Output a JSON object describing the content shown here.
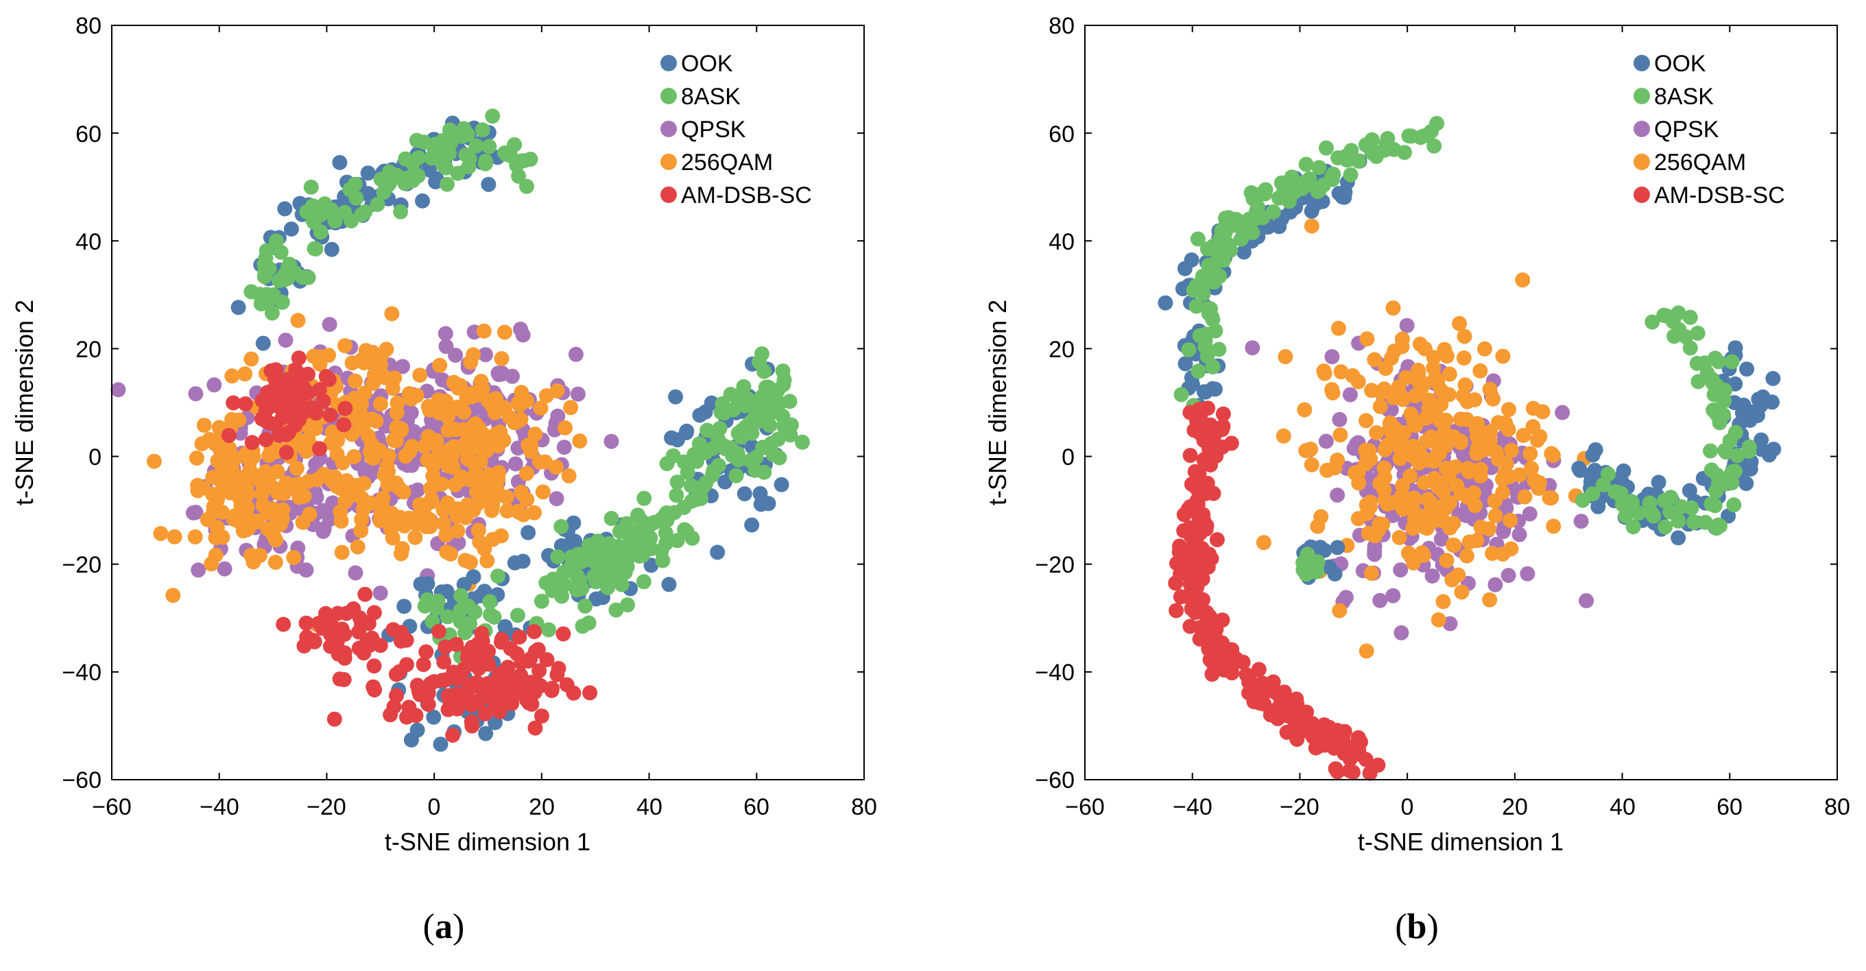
{
  "colors": {
    "OOK": "#4e7bab",
    "8ASK": "#6cbf66",
    "QPSK": "#a874b8",
    "256QAM": "#f79a32",
    "AM-DSB-SC": "#e34244"
  },
  "chart_data": [
    {
      "type": "scatter",
      "panel_label": "(a)",
      "panel_label_open": "(",
      "panel_label_letter": "a",
      "panel_label_close": ")",
      "xlabel": "t-SNE dimension 1",
      "ylabel": "t-SNE dimension 2",
      "xlim": [
        -60,
        80
      ],
      "ylim": [
        -60,
        80
      ],
      "xticks": [
        -60,
        -40,
        -20,
        0,
        20,
        40,
        60,
        80
      ],
      "yticks": [
        -60,
        -40,
        -20,
        0,
        20,
        40,
        60,
        80
      ],
      "xtick_labels": [
        "−60",
        "−40",
        "−20",
        "0",
        "20",
        "40",
        "60",
        "80"
      ],
      "ytick_labels": [
        "−60",
        "−40",
        "−20",
        "0",
        "20",
        "40",
        "60",
        "80"
      ],
      "legend": [
        "OOK",
        "8ASK",
        "QPSK",
        "256QAM",
        "AM-DSB-SC"
      ],
      "legend_position": "top-right",
      "series": [
        {
          "name": "QPSK",
          "clusters": [
            {
              "cx": -10,
              "cy": 2,
              "sx": 15,
              "sy": 9,
              "n": 200
            },
            {
              "cx": 8,
              "cy": 5,
              "sx": 9,
              "sy": 8,
              "n": 100
            },
            {
              "cx": -28,
              "cy": -10,
              "sx": 8,
              "sy": 6,
              "n": 60
            }
          ]
        },
        {
          "name": "256QAM",
          "clusters": [
            {
              "cx": -35,
              "cy": -8,
              "sx": 6,
              "sy": 7,
              "n": 110
            },
            {
              "cx": -15,
              "cy": 5,
              "sx": 12,
              "sy": 9,
              "n": 160
            },
            {
              "cx": 8,
              "cy": 2,
              "sx": 8,
              "sy": 9,
              "n": 130
            },
            {
              "cx": -5,
              "cy": -12,
              "sx": 10,
              "sy": 4,
              "n": 50
            }
          ]
        },
        {
          "name": "OOK",
          "clusters": [
            {
              "cx": 55,
              "cy": 0,
              "sx": 5,
              "sy": 8,
              "n": 50
            },
            {
              "cx": 30,
              "cy": -20,
              "sx": 6,
              "sy": 4,
              "n": 40
            },
            {
              "cx": 5,
              "cy": -28,
              "sx": 6,
              "sy": 4,
              "n": 35
            },
            {
              "cx": 5,
              "cy": -45,
              "sx": 6,
              "sy": 4,
              "n": 25
            }
          ],
          "curves": [
            {
              "points": [
                [
                  -30,
                  30
                ],
                [
                  -25,
                  42
                ],
                [
                  -15,
                  48
                ],
                [
                  -5,
                  52
                ],
                [
                  2,
                  58
                ],
                [
                  8,
                  58
                ],
                [
                  12,
                  55
                ]
              ],
              "n": 100,
              "spread": 2.6
            }
          ]
        },
        {
          "name": "8ASK",
          "clusters": [
            {
              "cx": 62,
              "cy": 8,
              "sx": 2.5,
              "sy": 5,
              "n": 40
            },
            {
              "cx": 40,
              "cy": -15,
              "sx": 4,
              "sy": 3,
              "n": 30
            },
            {
              "cx": 28,
              "cy": -22,
              "sx": 4,
              "sy": 4,
              "n": 50
            },
            {
              "cx": 5,
              "cy": -30,
              "sx": 6,
              "sy": 3,
              "n": 25
            }
          ],
          "curves": [
            {
              "points": [
                [
                  -32,
                  28
                ],
                [
                  -24,
                  42
                ],
                [
                  -14,
                  49
                ],
                [
                  -4,
                  53
                ],
                [
                  4,
                  58
                ],
                [
                  12,
                  56
                ],
                [
                  16,
                  53
                ]
              ],
              "n": 110,
              "spread": 2.4
            },
            {
              "points": [
                [
                  58,
                  12
                ],
                [
                  53,
                  0
                ],
                [
                  46,
                  -10
                ],
                [
                  38,
                  -16
                ],
                [
                  30,
                  -22
                ]
              ],
              "n": 70,
              "spread": 2.2
            }
          ]
        },
        {
          "name": "AM-DSB-SC",
          "clusters": [
            {
              "cx": -28,
              "cy": 10,
              "sx": 4,
              "sy": 4,
              "n": 70
            },
            {
              "cx": 8,
              "cy": -42,
              "sx": 8,
              "sy": 4.5,
              "n": 130
            },
            {
              "cx": -15,
              "cy": -33,
              "sx": 5,
              "sy": 3.5,
              "n": 45
            }
          ]
        }
      ]
    },
    {
      "type": "scatter",
      "panel_label": "(b)",
      "panel_label_open": "(",
      "panel_label_letter": "b",
      "panel_label_close": ")",
      "xlabel": "t-SNE dimension 1",
      "ylabel": "t-SNE dimension 2",
      "xlim": [
        -60,
        80
      ],
      "ylim": [
        -60,
        80
      ],
      "xticks": [
        -60,
        -40,
        -20,
        0,
        20,
        40,
        60,
        80
      ],
      "yticks": [
        -60,
        -40,
        -20,
        0,
        20,
        40,
        60,
        80
      ],
      "xtick_labels": [
        "−60",
        "−40",
        "−20",
        "0",
        "20",
        "40",
        "60",
        "80"
      ],
      "ytick_labels": [
        "−60",
        "−40",
        "−20",
        "0",
        "20",
        "40",
        "60",
        "80"
      ],
      "legend": [
        "OOK",
        "8ASK",
        "QPSK",
        "256QAM",
        "AM-DSB-SC"
      ],
      "legend_position": "top-right",
      "series": [
        {
          "name": "QPSK",
          "clusters": [
            {
              "cx": 5,
              "cy": -3,
              "sx": 10,
              "sy": 11,
              "n": 220
            }
          ]
        },
        {
          "name": "256QAM",
          "clusters": [
            {
              "cx": 4,
              "cy": 0,
              "sx": 11,
              "sy": 12,
              "n": 260
            }
          ]
        },
        {
          "name": "OOK",
          "clusters": [
            {
              "cx": -18,
              "cy": -18,
              "sx": 2,
              "sy": 1.5,
              "n": 15
            },
            {
              "cx": 35,
              "cy": -5,
              "sx": 3,
              "sy": 2,
              "n": 15
            }
          ],
          "curves": [
            {
              "points": [
                [
                  -38,
                  10
                ],
                [
                  -40,
                  28
                ],
                [
                  -35,
                  38
                ],
                [
                  -25,
                  45
                ],
                [
                  -15,
                  50
                ],
                [
                  -10,
                  52
                ]
              ],
              "n": 80,
              "spread": 2.0
            },
            {
              "points": [
                [
                  33,
                  -2
                ],
                [
                  40,
                  -8
                ],
                [
                  50,
                  -12
                ],
                [
                  58,
                  -8
                ],
                [
                  62,
                  0
                ],
                [
                  65,
                  8
                ],
                [
                  58,
                  18
                ]
              ],
              "n": 85,
              "spread": 2.6
            }
          ]
        },
        {
          "name": "8ASK",
          "clusters": [
            {
              "cx": -18,
              "cy": -20,
              "sx": 2,
              "sy": 1.2,
              "n": 14
            }
          ],
          "curves": [
            {
              "points": [
                [
                  -39,
                  30
                ],
                [
                  -34,
                  40
                ],
                [
                  -28,
                  46
                ],
                [
                  -18,
                  52
                ],
                [
                  -8,
                  56
                ],
                [
                  0,
                  60
                ],
                [
                  5,
                  60
                ]
              ],
              "n": 95,
              "spread": 1.8
            },
            {
              "points": [
                [
                  -38,
                  12
                ],
                [
                  -37,
                  22
                ],
                [
                  -38,
                  30
                ]
              ],
              "n": 20,
              "spread": 1.6
            },
            {
              "points": [
                [
                  48,
                  25
                ],
                [
                  55,
                  18
                ],
                [
                  60,
                  8
                ],
                [
                  60,
                  -5
                ],
                [
                  55,
                  -12
                ],
                [
                  45,
                  -10
                ],
                [
                  35,
                  -5
                ]
              ],
              "n": 80,
              "spread": 2.2
            }
          ]
        },
        {
          "name": "AM-DSB-SC",
          "curves": [
            {
              "points": [
                [
                  -37,
                  8
                ],
                [
                  -38,
                  -5
                ],
                [
                  -40,
                  -15
                ],
                [
                  -40,
                  -25
                ],
                [
                  -36,
                  -35
                ],
                [
                  -30,
                  -42
                ],
                [
                  -22,
                  -48
                ],
                [
                  -12,
                  -54
                ],
                [
                  -7,
                  -58
                ]
              ],
              "n": 230,
              "spread": 1.7
            }
          ]
        }
      ]
    }
  ]
}
